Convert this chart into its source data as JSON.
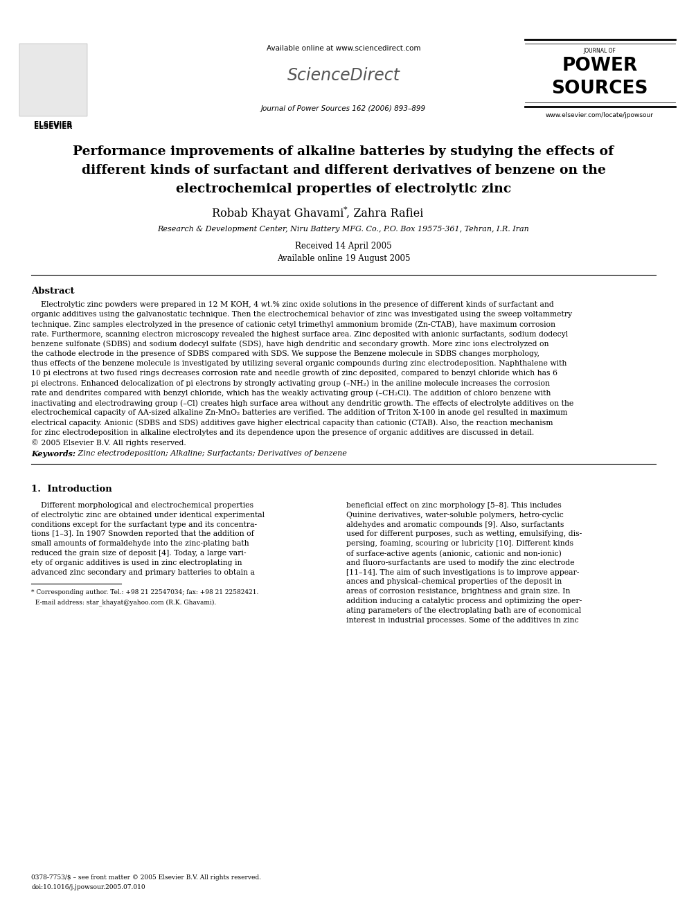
{
  "bg_color": "#ffffff",
  "page_width": 9.92,
  "page_height": 13.23,
  "dpi": 100,
  "header": {
    "elsevier_text": "ELSEVIER",
    "available_online": "Available online at www.sciencedirect.com",
    "sciencedirect": "ScienceDirect",
    "journal_line": "Journal of Power Sources 162 (2006) 893–899",
    "journal_title_line1": "JOURNAL OF",
    "journal_title_line2": "POWER",
    "journal_title_line3": "SOURCES",
    "website": "www.elsevier.com/locate/jpowsour"
  },
  "article_title_line1": "Performance improvements of alkaline batteries by studying the effects of",
  "article_title_line2": "different kinds of surfactant and different derivatives of benzene on the",
  "article_title_line3": "electrochemical properties of electrolytic zinc",
  "authors_part1": "Robab Khayat Ghavami",
  "authors_star": "*",
  "authors_part2": ", Zahra Rafiei",
  "affiliation": "Research & Development Center, Niru Battery MFG. Co., P.O. Box 19575-361, Tehran, I.R. Iran",
  "received": "Received 14 April 2005",
  "available": "Available online 19 August 2005",
  "abstract_title": "Abstract",
  "abstract_text": "    Electrolytic zinc powders were prepared in 12 M KOH, 4 wt.% zinc oxide solutions in the presence of different kinds of surfactant and\norganic additives using the galvanostatic technique. Then the electrochemical behavior of zinc was investigated using the sweep voltammetry\ntechnique. Zinc samples electrolyzed in the presence of cationic cetyl trimethyl ammonium bromide (Zn-CTAB), have maximum corrosion\nrate. Furthermore, scanning electron microscopy revealed the highest surface area. Zinc deposited with anionic surfactants, sodium dodecyl\nbenzene sulfonate (SDBS) and sodium dodecyl sulfate (SDS), have high dendritic and secondary growth. More zinc ions electrolyzed on\nthe cathode electrode in the presence of SDBS compared with SDS. We suppose the Benzene molecule in SDBS changes morphology,\nthus effects of the benzene molecule is investigated by utilizing several organic compounds during zinc electrodeposition. Naphthalene with\n10 pi electrons at two fused rings decreases corrosion rate and needle growth of zinc deposited, compared to benzyl chloride which has 6\npi electrons. Enhanced delocalization of pi electrons by strongly activating group (–NH₂) in the aniline molecule increases the corrosion\nrate and dendrites compared with benzyl chloride, which has the weakly activating group (–CH₂Cl). The addition of chloro benzene with\ninactivating and electrodrawing group (–Cl) creates high surface area without any dendritic growth. The effects of electrolyte additives on the\nelectrochemical capacity of AA-sized alkaline Zn-MnO₂ batteries are verified. The addition of Triton X-100 in anode gel resulted in maximum\nelectrical capacity. Anionic (SDBS and SDS) additives gave higher electrical capacity than cationic (CTAB). Also, the reaction mechanism\nfor zinc electrodeposition in alkaline electrolytes and its dependence upon the presence of organic additives are discussed in detail.\n© 2005 Elsevier B.V. All rights reserved.",
  "keywords_label": "Keywords: ",
  "keywords_text": " Zinc electrodeposition; Alkaline; Surfactants; Derivatives of benzene",
  "section1_title": "1.  Introduction",
  "section1_col1_lines": [
    "    Different morphological and electrochemical properties",
    "of electrolytic zinc are obtained under identical experimental",
    "conditions except for the surfactant type and its concentra-",
    "tions [1–3]. In 1907 Snowden reported that the addition of",
    "small amounts of formaldehyde into the zinc-plating bath",
    "reduced the grain size of deposit [4]. Today, a large vari-",
    "ety of organic additives is used in zinc electroplating in",
    "advanced zinc secondary and primary batteries to obtain a"
  ],
  "section1_col2_lines": [
    "beneficial effect on zinc morphology [5–8]. This includes",
    "Quinine derivatives, water-soluble polymers, hetro-cyclic",
    "aldehydes and aromatic compounds [9]. Also, surfactants",
    "used for different purposes, such as wetting, emulsifying, dis-",
    "persing, foaming, scouring or lubricity [10]. Different kinds",
    "of surface-active agents (anionic, cationic and non-ionic)",
    "and fluoro-surfactants are used to modify the zinc electrode",
    "[11–14]. The aim of such investigations is to improve appear-",
    "ances and physical–chemical properties of the deposit in",
    "areas of corrosion resistance, brightness and grain size. In",
    "addition inducing a catalytic process and optimizing the oper-",
    "ating parameters of the electroplating bath are of economical",
    "interest in industrial processes. Some of the additives in zinc"
  ],
  "footnote_line": "* Corresponding author. Tel.: +98 21 22547034; fax: +98 21 22582421.",
  "footnote_email": "  E-mail address: star_khayat@yahoo.com (R.K. Ghavami).",
  "footer_issn": "0378-7753/$ – see front matter © 2005 Elsevier B.V. All rights reserved.",
  "footer_doi": "doi:10.1016/j.jpowsour.2005.07.010"
}
